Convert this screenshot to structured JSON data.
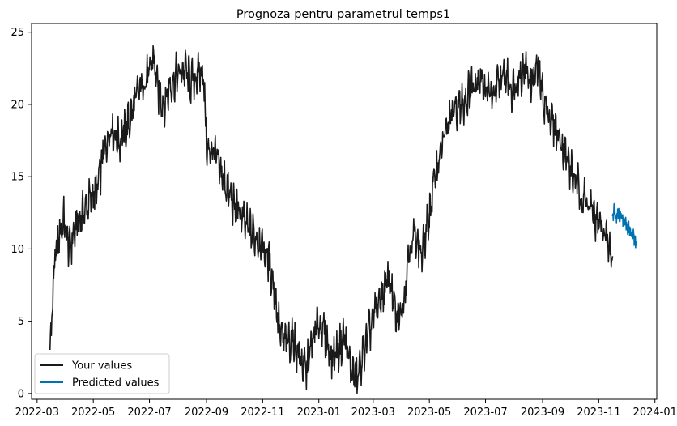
{
  "chart_data": {
    "type": "line",
    "title": "Prognoza pentru parametrul temps1",
    "xlabel": "",
    "ylabel": "",
    "xlim": [
      "2022-02-23",
      "2024-01-03"
    ],
    "ylim": [
      -0.4,
      25.6
    ],
    "x_ticks": [
      "2022-03",
      "2022-05",
      "2022-07",
      "2022-09",
      "2022-11",
      "2023-01",
      "2023-03",
      "2023-05",
      "2023-07",
      "2023-09",
      "2023-11",
      "2024-01"
    ],
    "y_ticks": [
      0,
      5,
      10,
      15,
      20,
      25
    ],
    "grid": false,
    "legend": "lower-left",
    "series": [
      {
        "name": "Your values",
        "color": "#1a1a1a",
        "x": [
          "2022-03-15",
          "2022-03-20",
          "2022-03-25",
          "2022-03-30",
          "2022-04-05",
          "2022-04-12",
          "2022-04-20",
          "2022-04-28",
          "2022-05-05",
          "2022-05-12",
          "2022-05-20",
          "2022-05-28",
          "2022-06-04",
          "2022-06-10",
          "2022-06-17",
          "2022-06-24",
          "2022-07-01",
          "2022-07-05",
          "2022-07-10",
          "2022-07-17",
          "2022-07-24",
          "2022-08-01",
          "2022-08-08",
          "2022-08-15",
          "2022-08-22",
          "2022-08-28",
          "2022-09-02",
          "2022-09-08",
          "2022-09-15",
          "2022-09-22",
          "2022-09-30",
          "2022-10-07",
          "2022-10-15",
          "2022-10-22",
          "2022-10-30",
          "2022-11-06",
          "2022-11-13",
          "2022-11-20",
          "2022-11-27",
          "2022-12-04",
          "2022-12-11",
          "2022-12-18",
          "2022-12-25",
          "2023-01-01",
          "2023-01-08",
          "2023-01-15",
          "2023-01-22",
          "2023-01-29",
          "2023-02-05",
          "2023-02-12",
          "2023-02-19",
          "2023-02-26",
          "2023-03-05",
          "2023-03-12",
          "2023-03-19",
          "2023-03-26",
          "2023-04-02",
          "2023-04-09",
          "2023-04-16",
          "2023-04-23",
          "2023-04-30",
          "2023-05-07",
          "2023-05-14",
          "2023-05-21",
          "2023-05-28",
          "2023-06-04",
          "2023-06-11",
          "2023-06-18",
          "2023-06-25",
          "2023-07-02",
          "2023-07-09",
          "2023-07-16",
          "2023-07-23",
          "2023-07-30",
          "2023-08-06",
          "2023-08-13",
          "2023-08-20",
          "2023-08-27",
          "2023-09-03",
          "2023-09-10",
          "2023-09-17",
          "2023-09-24",
          "2023-10-01",
          "2023-10-08",
          "2023-10-15",
          "2023-10-22",
          "2023-10-29",
          "2023-11-05",
          "2023-11-12",
          "2023-11-16"
        ],
        "values": [
          3.0,
          9.0,
          11.0,
          12.0,
          10.0,
          11.5,
          12.5,
          13.5,
          14.0,
          16.5,
          18.5,
          17.5,
          18.0,
          19.0,
          20.5,
          21.5,
          22.0,
          23.5,
          21.0,
          20.0,
          21.5,
          22.0,
          22.5,
          21.5,
          22.0,
          22.5,
          16.5,
          17.0,
          15.5,
          14.5,
          13.0,
          12.5,
          11.5,
          11.0,
          10.5,
          9.5,
          7.5,
          4.0,
          3.5,
          3.8,
          2.5,
          1.5,
          3.5,
          5.0,
          4.0,
          2.5,
          3.0,
          4.0,
          1.5,
          1.0,
          3.0,
          4.5,
          6.0,
          7.0,
          8.0,
          5.0,
          6.0,
          10.0,
          11.0,
          9.5,
          12.0,
          15.0,
          17.0,
          18.5,
          19.5,
          20.0,
          20.5,
          21.5,
          22.0,
          21.0,
          20.5,
          21.5,
          22.0,
          21.0,
          22.0,
          22.5,
          21.5,
          22.5,
          20.0,
          19.0,
          18.0,
          17.0,
          15.5,
          14.5,
          13.5,
          13.0,
          12.0,
          11.5,
          10.0,
          9.5
        ]
      },
      {
        "name": "Predicted values",
        "color": "#0072b2",
        "x": [
          "2023-11-16",
          "2023-11-18",
          "2023-11-20",
          "2023-11-22",
          "2023-11-24",
          "2023-11-26",
          "2023-11-28",
          "2023-11-30",
          "2023-12-02",
          "2023-12-04",
          "2023-12-06",
          "2023-12-08",
          "2023-12-10",
          "2023-12-12"
        ],
        "values": [
          12.3,
          12.8,
          12.2,
          12.6,
          12.1,
          12.4,
          11.8,
          11.9,
          11.3,
          11.5,
          11.0,
          11.1,
          10.6,
          10.4
        ]
      }
    ]
  }
}
